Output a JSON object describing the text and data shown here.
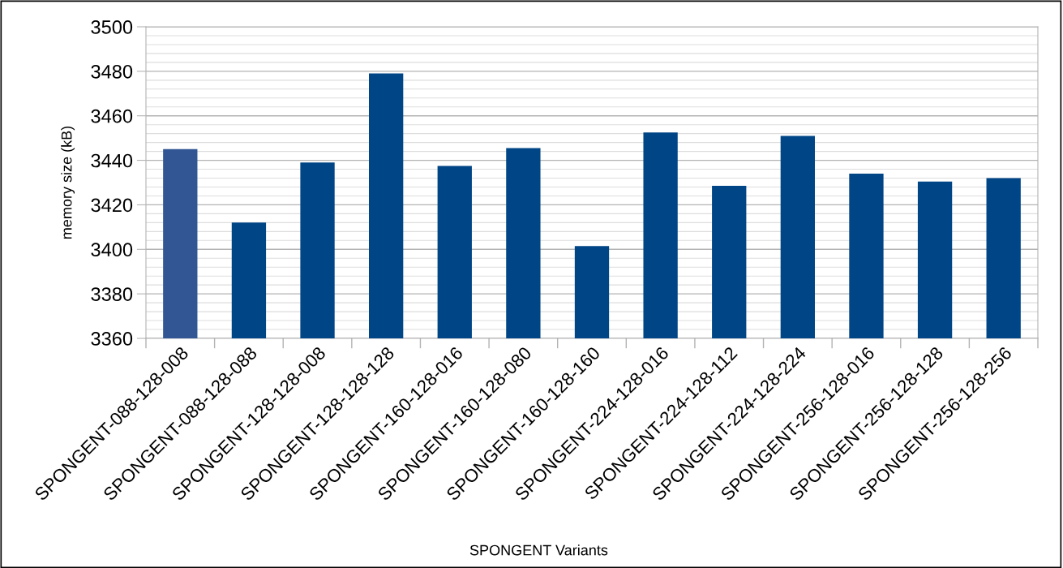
{
  "chart_data": {
    "type": "bar",
    "xlabel": "SPONGENT Variants",
    "ylabel": "memory size (kB)",
    "categories": [
      "SPONGENT-088-128-008",
      "SPONGENT-088-128-088",
      "SPONGENT-128-128-008",
      "SPONGENT-128-128-128",
      "SPONGENT-160-128-016",
      "SPONGENT-160-128-080",
      "SPONGENT-160-128-160",
      "SPONGENT-224-128-016",
      "SPONGENT-224-128-112",
      "SPONGENT-224-128-224",
      "SPONGENT-256-128-016",
      "SPONGENT-256-128-128",
      "SPONGENT-256-128-256"
    ],
    "values": [
      3445,
      3412,
      3439,
      3479,
      3437.5,
      3445.5,
      3401.5,
      3452.5,
      3428.5,
      3451,
      3434,
      3430.5,
      3432
    ],
    "colors": [
      "#325694",
      "#004586",
      "#004586",
      "#004586",
      "#004586",
      "#004586",
      "#004586",
      "#004586",
      "#004586",
      "#004586",
      "#004586",
      "#004586",
      "#004586"
    ],
    "ylim": [
      3360,
      3500
    ],
    "yticks": [
      3360,
      3380,
      3400,
      3420,
      3440,
      3460,
      3480,
      3500
    ],
    "grid": "y"
  }
}
